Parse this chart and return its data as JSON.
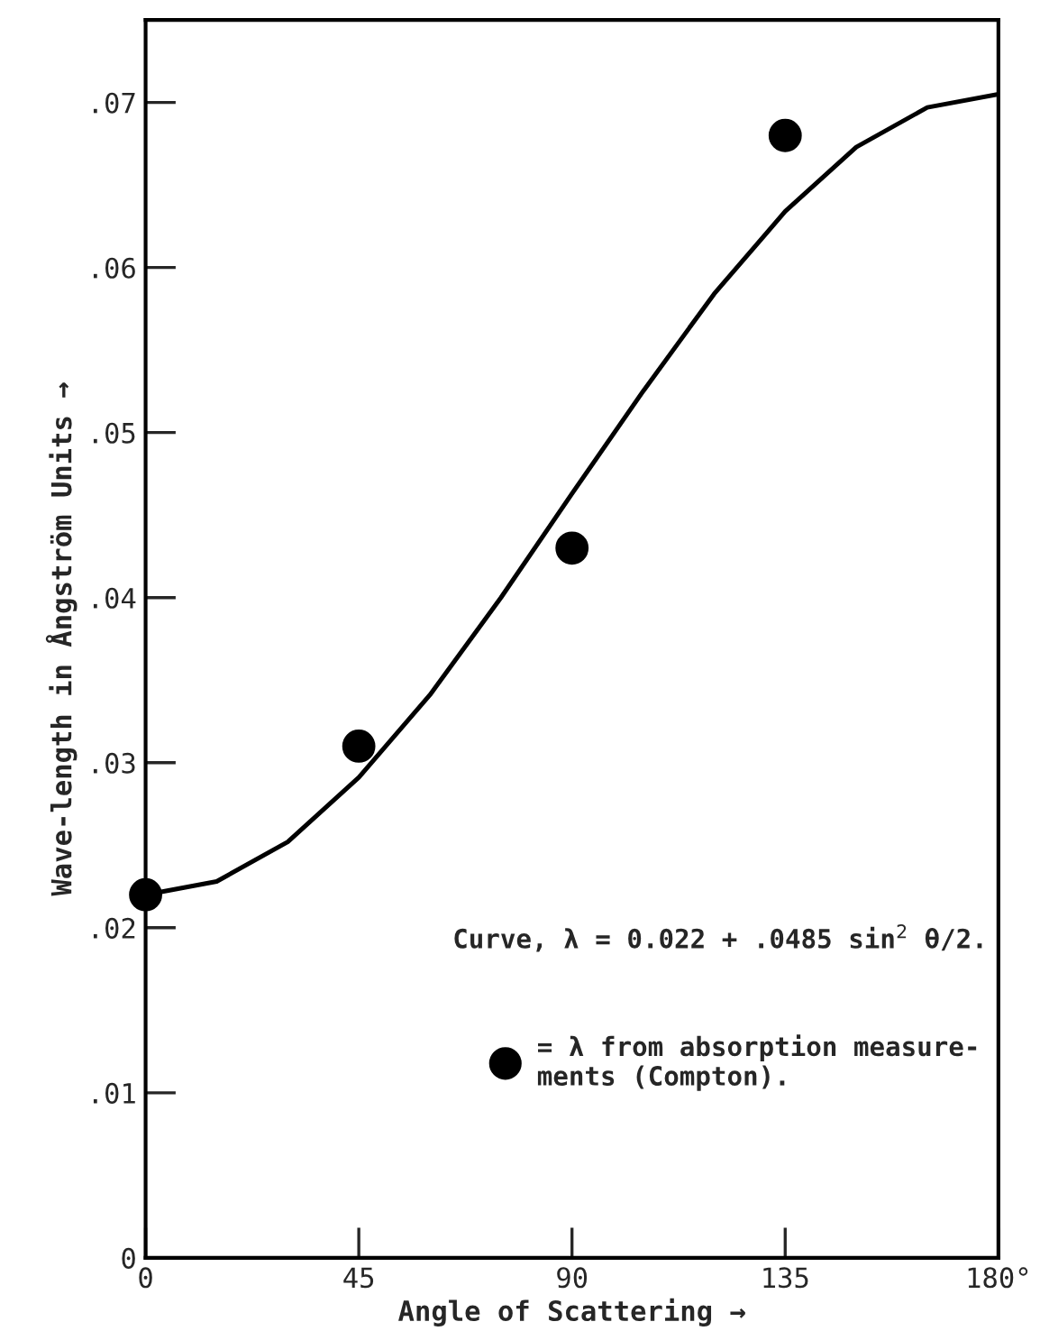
{
  "chart_data": {
    "type": "line",
    "xlabel": "Angle of Scattering →",
    "ylabel": "Wave-length in Ångström Units →",
    "x": [
      0,
      15,
      30,
      45,
      60,
      75,
      90,
      105,
      120,
      135,
      150,
      165,
      180
    ],
    "series": [
      {
        "color": "#000000",
        "values": [
          0.022,
          0.0228,
          0.0252,
          0.0291,
          0.0341,
          0.04,
          0.0463,
          0.0525,
          0.0584,
          0.0634,
          0.0673,
          0.0697,
          0.0705
        ]
      },
      {
        "type": "scatter",
        "marker": "circle",
        "name": "= λ from absorption measure-\nments (Compton).",
        "color": "#000000",
        "x": [
          0,
          45,
          90,
          135
        ],
        "values": [
          0.022,
          0.031,
          0.043,
          0.068
        ]
      }
    ],
    "xlim": [
      0,
      180
    ],
    "xticks": [
      0,
      45,
      90,
      135,
      {
        "value": 180,
        "label": "180°"
      }
    ],
    "ylim": [
      0,
      0.075
    ],
    "yticks": [
      0,
      {
        "value": 0.01,
        "label": ".01"
      },
      {
        "value": 0.02,
        "label": ".02"
      },
      {
        "value": 0.03,
        "label": ".03"
      },
      {
        "value": 0.04,
        "label": ".04"
      },
      {
        "value": 0.05,
        "label": ".05"
      },
      {
        "value": 0.06,
        "label": ".06"
      },
      {
        "value": 0.07,
        "label": ".07"
      }
    ],
    "annotations": [
      "Curve, λ = 0.022 + .0485 sin$^{2}$ θ/2."
    ],
    "legend": "bottom right",
    "grid": false,
    "marker": "none",
    "line_style": "solid"
  }
}
